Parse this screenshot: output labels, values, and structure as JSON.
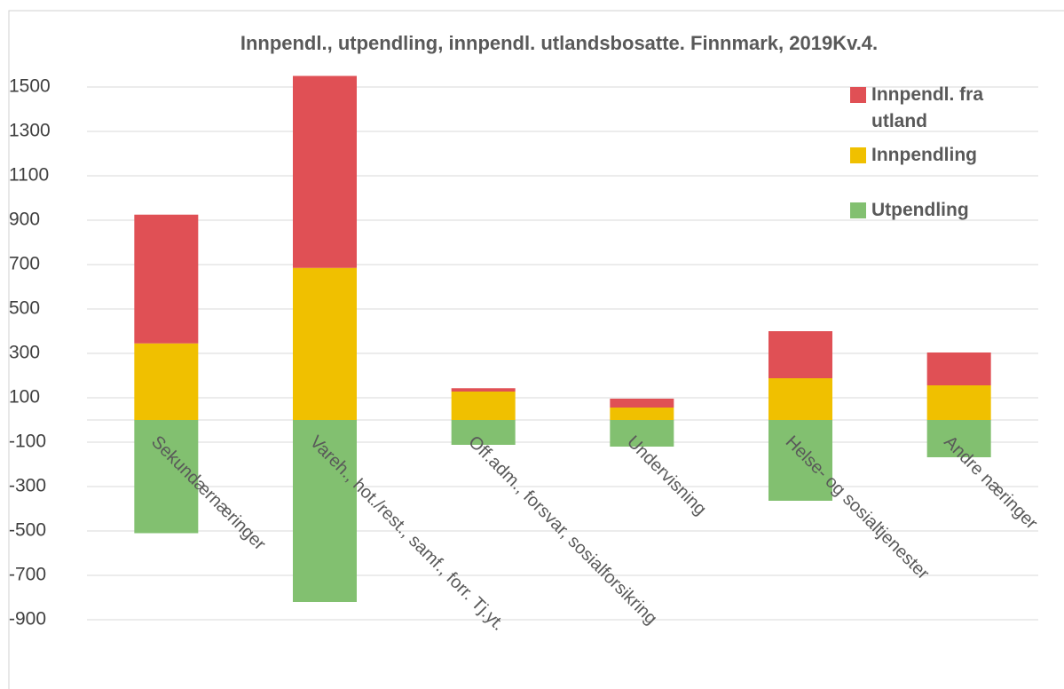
{
  "chart_data": {
    "type": "stacked_bar",
    "title": "Innpendl., utpendling, innpendl. utlandsbosatte. Finnmark, 2019Kv.4.",
    "categories": [
      "Sekundærnæringer",
      "Vareh., hot./rest., samf., forr. Tj.yt.",
      "Off.adm., forsvar, sosialforsikring",
      "Undervisning",
      "Helse- og sosialtjenester",
      "Andre næringer"
    ],
    "series": [
      {
        "name": "Utpendling",
        "color": "#82c070",
        "values": [
          -510,
          -820,
          -112,
          -120,
          -364,
          -168
        ]
      },
      {
        "name": "Innpendling",
        "color": "#f0c000",
        "values": [
          345,
          685,
          128,
          56,
          188,
          156
        ]
      },
      {
        "name": "Innpendl. fra utland",
        "color": "#e05055",
        "values": [
          580,
          865,
          15,
          40,
          212,
          148
        ]
      }
    ],
    "ylim": [
      -900,
      1600
    ],
    "yticks": [
      -900,
      -700,
      -500,
      -300,
      -100,
      100,
      300,
      500,
      700,
      900,
      1100,
      1300,
      1500
    ],
    "grid": true,
    "legend": "right"
  }
}
